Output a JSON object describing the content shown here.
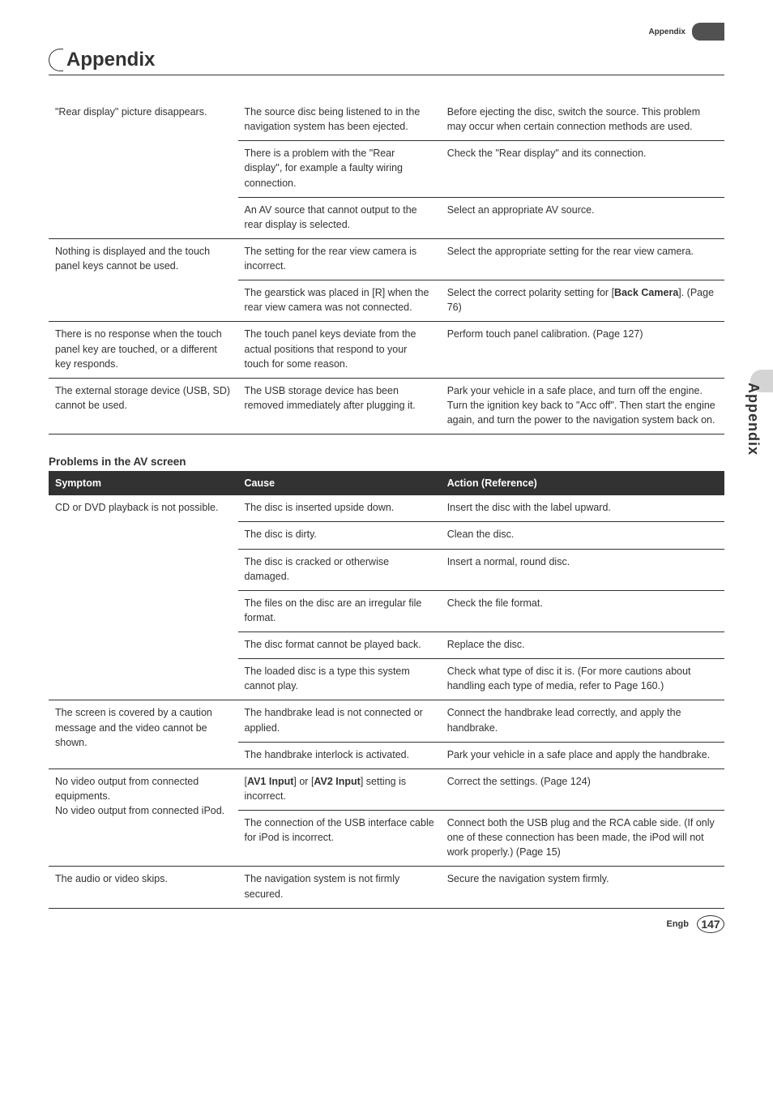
{
  "header": {
    "topRightLabel": "Appendix",
    "title": "Appendix"
  },
  "sideTab": "Appendix",
  "footer": {
    "lang": "Engb",
    "page": "147"
  },
  "table1": {
    "rows": [
      {
        "c1": "\"Rear display\" picture disappears.",
        "c2": "The source disc being listened to in the navigation system has been ejected.",
        "c3": "Before ejecting the disc, switch the source. This problem may occur when certain connection methods are used.",
        "rowspan1": 3
      },
      {
        "c2": "There is a problem with the \"Rear display\", for example a faulty wiring connection.",
        "c3": "Check the \"Rear display\" and its connection."
      },
      {
        "c2": "An AV source that cannot output to the rear display is selected.",
        "c3": "Select an appropriate AV source."
      },
      {
        "c1": "Nothing is displayed and the touch panel keys cannot be used.",
        "c2": "The setting for the rear view camera is incorrect.",
        "c3": "Select the appropriate setting for the rear view camera.",
        "rowspan1": 2,
        "thickTop": true
      },
      {
        "c2": "The gearstick was placed in [R] when the rear view camera was not connected.",
        "c3_html": "Select the correct polarity setting for [<b>Back Camera</b>]. (Page 76)"
      },
      {
        "c1": "There is no response when the touch panel key are touched, or a different key responds.",
        "c2": "The touch panel keys deviate from the actual positions that respond to your touch for some reason.",
        "c3": "Perform touch panel calibration. (Page 127)",
        "thickTop": true
      },
      {
        "c1": "The external storage device (USB, SD) cannot be used.",
        "c2": "The USB storage device has been removed immediately after plugging it.",
        "c3": "Park your vehicle in a safe place, and turn off the engine. Turn the ignition key back to \"Acc off\". Then start the engine again, and turn the power to the navigation system back on.",
        "thickTop": true,
        "thickBottom": true
      }
    ]
  },
  "section2Title": "Problems in the AV screen",
  "table2": {
    "head": {
      "c1": "Symptom",
      "c2": "Cause",
      "c3": "Action (Reference)"
    },
    "rows": [
      {
        "c1": "CD or DVD playback is not possible.",
        "c2": "The disc is inserted upside down.",
        "c3": "Insert the disc with the label upward.",
        "rowspan1": 6
      },
      {
        "c2": "The disc is dirty.",
        "c3": "Clean the disc."
      },
      {
        "c2": "The disc is cracked or otherwise damaged.",
        "c3": "Insert a normal, round disc."
      },
      {
        "c2": "The files on the disc are an irregular file format.",
        "c3": "Check the file format."
      },
      {
        "c2": "The disc format cannot be played back.",
        "c3": "Replace the disc."
      },
      {
        "c2": "The loaded disc is a type this system cannot play.",
        "c3": "Check what type of disc it is. (For more cautions about handling each type of media, refer to Page 160.)"
      },
      {
        "c1": "The screen is covered by a caution message and the video cannot be shown.",
        "c2": "The handbrake lead is not connected or applied.",
        "c3": "Connect the handbrake lead correctly, and apply the handbrake.",
        "rowspan1": 2,
        "thickTop": true
      },
      {
        "c2": "The handbrake interlock is activated.",
        "c3": "Park your vehicle in a safe place and apply the handbrake."
      },
      {
        "c1": "No video output from connected equipments.\nNo video output from connected iPod.",
        "c2_html": "[<b>AV1 Input</b>] or [<b>AV2 Input</b>] setting is incorrect.",
        "c3": "Correct the settings. (Page 124)",
        "rowspan1": 2,
        "thickTop": true
      },
      {
        "c2": "The connection of the USB interface cable for iPod is incorrect.",
        "c3": "Connect both the USB plug and the RCA cable side. (If only one of these connection has been made, the iPod will not work properly.) (Page 15)"
      },
      {
        "c1": "The audio or video skips.",
        "c2": "The navigation system is not firmly secured.",
        "c3": "Secure the navigation system firmly.",
        "thickTop": true,
        "thickBottom": true
      }
    ]
  }
}
